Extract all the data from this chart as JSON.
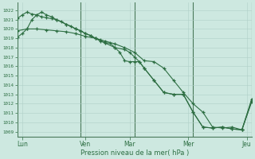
{
  "bg_color": "#cde8e0",
  "grid_major_color": "#b0cfc7",
  "grid_minor_color": "#c5dfd8",
  "line_color": "#2d6e42",
  "ylim": [
    1008.5,
    1022.8
  ],
  "xlim": [
    0,
    24
  ],
  "xlabel": "Pression niveau de la mer( hPa )",
  "day_labels": [
    "Lun",
    "Ven",
    "Mar",
    "Mer",
    "Jeu"
  ],
  "day_positions": [
    0.5,
    7,
    11.5,
    17.5,
    23.5
  ],
  "vline_positions": [
    0,
    6.5,
    12,
    18,
    24
  ],
  "yticks": [
    1009,
    1010,
    1011,
    1012,
    1013,
    1014,
    1015,
    1016,
    1017,
    1018,
    1019,
    1020,
    1021,
    1022
  ],
  "s1_x": [
    0,
    0.5,
    1,
    1.5,
    2,
    2.5,
    3,
    3.5,
    4,
    4.5,
    5,
    5.5,
    6,
    6.5,
    7,
    7.5,
    8,
    8.5,
    9,
    9.5,
    10,
    10.5,
    11,
    11.5,
    12,
    12.5,
    13,
    14,
    15,
    16,
    17,
    18,
    19,
    20,
    21,
    22,
    23,
    24
  ],
  "s1_y": [
    1021.1,
    1021.5,
    1021.8,
    1021.6,
    1021.5,
    1021.3,
    1021.2,
    1021.1,
    1021.0,
    1020.8,
    1020.5,
    1020.3,
    1020.0,
    1019.8,
    1019.5,
    1019.3,
    1019.0,
    1018.7,
    1018.5,
    1018.5,
    1018.0,
    1017.5,
    1016.6,
    1016.5,
    1016.5,
    1016.5,
    1015.8,
    1014.5,
    1013.2,
    1013.0,
    1013.0,
    1011.1,
    1009.5,
    1009.4,
    1009.5,
    1009.3,
    1009.2,
    1012.2
  ],
  "s2_x": [
    0,
    0.5,
    1,
    1.5,
    2,
    2.5,
    3,
    3.5,
    4,
    5,
    6,
    6.5,
    7,
    7.5,
    8,
    8.5,
    9,
    10,
    11,
    11.5,
    12,
    12.5,
    13,
    14,
    15,
    16,
    17,
    18,
    19,
    20,
    21,
    22,
    23,
    24
  ],
  "s2_y": [
    1019.1,
    1019.5,
    1020.0,
    1021.0,
    1021.5,
    1021.8,
    1021.5,
    1021.3,
    1021.0,
    1020.5,
    1020.0,
    1019.8,
    1019.5,
    1019.3,
    1019.0,
    1018.8,
    1018.5,
    1018.0,
    1017.8,
    1017.5,
    1017.0,
    1016.5,
    1015.8,
    1014.5,
    1013.2,
    1013.0,
    1013.0,
    1011.1,
    1009.5,
    1009.4,
    1009.5,
    1009.3,
    1009.2,
    1012.5
  ],
  "s3_x": [
    0,
    1,
    2,
    3,
    4,
    5,
    6,
    7,
    8,
    9,
    10,
    11,
    12,
    13,
    14,
    15,
    16,
    17,
    18,
    19,
    20,
    21,
    22,
    23,
    24
  ],
  "s3_y": [
    1019.8,
    1020.0,
    1020.0,
    1019.9,
    1019.8,
    1019.7,
    1019.5,
    1019.2,
    1019.0,
    1018.7,
    1018.4,
    1018.0,
    1017.5,
    1016.6,
    1016.5,
    1015.8,
    1014.5,
    1013.2,
    1012.0,
    1011.1,
    1009.5,
    1009.4,
    1009.5,
    1009.2,
    1012.3
  ]
}
